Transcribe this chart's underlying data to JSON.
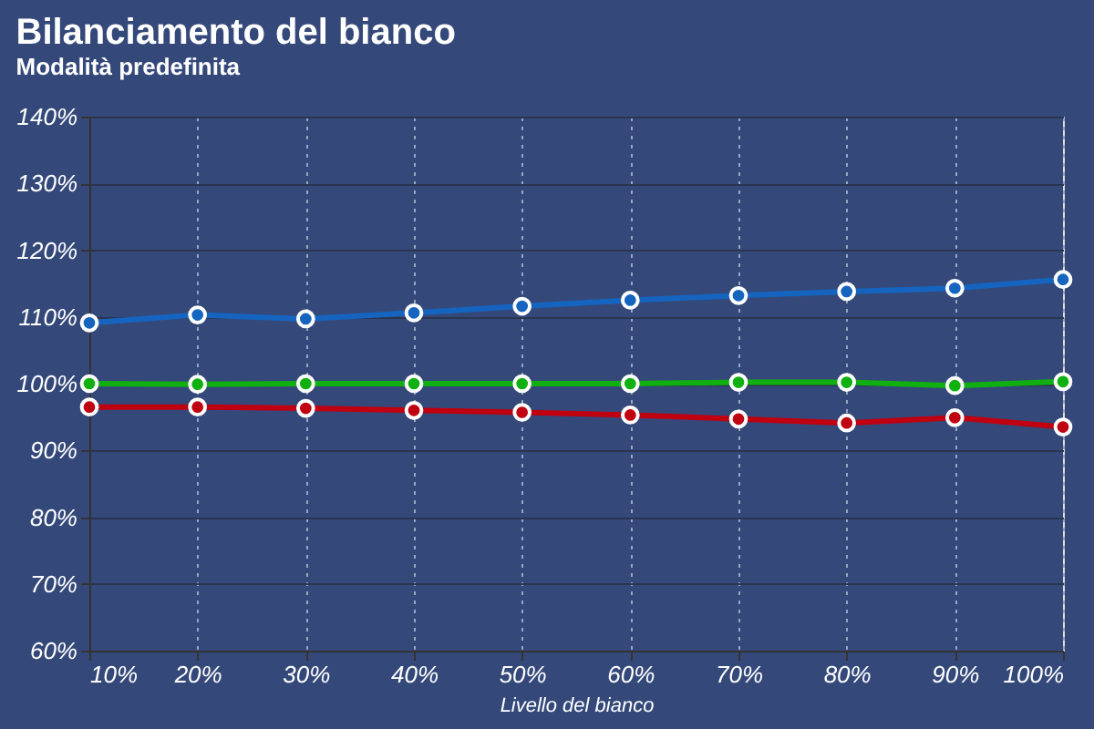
{
  "chart_data": {
    "type": "line",
    "title": "Bilanciamento del bianco",
    "subtitle": "Modalità predefinita",
    "xlabel": "Livello del bianco",
    "x": [
      10,
      20,
      30,
      40,
      50,
      60,
      70,
      80,
      90,
      100
    ],
    "xlim": [
      10,
      100
    ],
    "xticks": [
      {
        "value": 10,
        "label": "10%"
      },
      {
        "value": 20,
        "label": "20%"
      },
      {
        "value": 30,
        "label": "30%"
      },
      {
        "value": 40,
        "label": "40%"
      },
      {
        "value": 50,
        "label": "50%"
      },
      {
        "value": 60,
        "label": "60%"
      },
      {
        "value": 70,
        "label": "70%"
      },
      {
        "value": 80,
        "label": "80%"
      },
      {
        "value": 90,
        "label": "90%"
      },
      {
        "value": 100,
        "label": "100%"
      }
    ],
    "ylim": [
      60,
      140
    ],
    "yticks": [
      {
        "value": 60,
        "label": "60%"
      },
      {
        "value": 70,
        "label": "70%"
      },
      {
        "value": 80,
        "label": "80%"
      },
      {
        "value": 90,
        "label": "90%"
      },
      {
        "value": 100,
        "label": "100%"
      },
      {
        "value": 110,
        "label": "110%"
      },
      {
        "value": 120,
        "label": "120%"
      },
      {
        "value": 130,
        "label": "130%"
      },
      {
        "value": 140,
        "label": "140%"
      }
    ],
    "series": [
      {
        "color": "#1565c0",
        "values": [
          109.1,
          110.3,
          109.7,
          110.6,
          111.6,
          112.5,
          113.2,
          113.8,
          114.3,
          115.6
        ]
      },
      {
        "color": "#10b010",
        "values": [
          100.0,
          99.9,
          100.0,
          100.0,
          100.0,
          100.0,
          100.2,
          100.2,
          99.7,
          100.3
        ]
      },
      {
        "color": "#c00010",
        "values": [
          96.5,
          96.5,
          96.3,
          96.0,
          95.7,
          95.3,
          94.7,
          94.1,
          94.9,
          93.5
        ]
      }
    ],
    "grid": true,
    "marker": "circle",
    "line_style": "solid",
    "legend": false
  }
}
